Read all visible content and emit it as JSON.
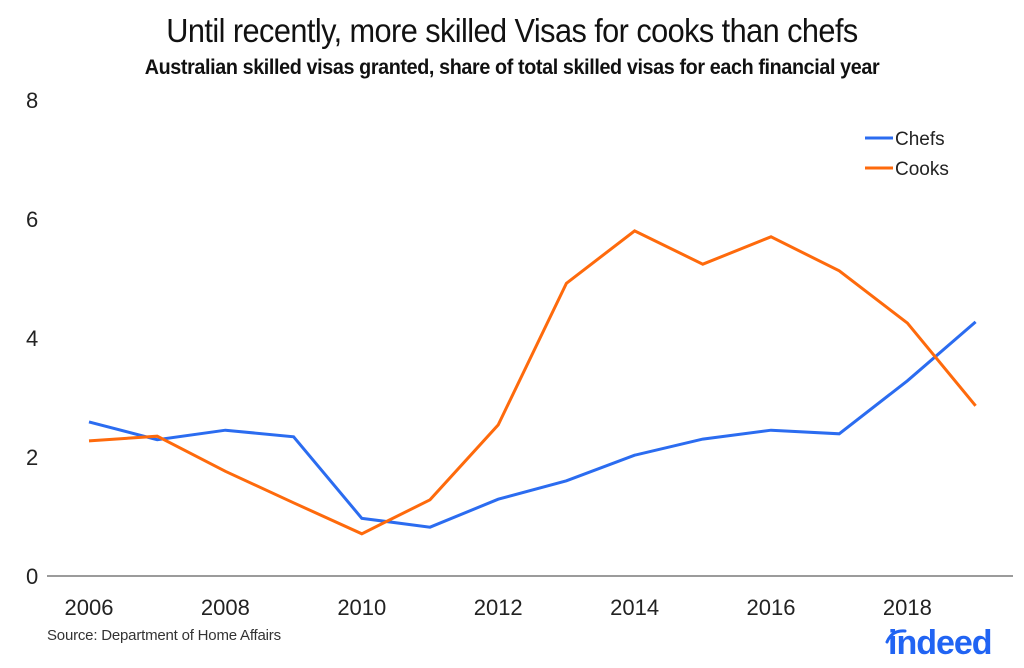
{
  "title": "Until recently, more skilled Visas for cooks than chefs",
  "subtitle": "Australian skilled visas granted, share of total skilled visas for each financial year",
  "source": "Source: Department of Home Affairs",
  "logo": "indeed",
  "colors": {
    "chefs": "#2b6cf0",
    "cooks": "#fe6a0c",
    "axis": "#7a7a7a",
    "logo": "#2164f3"
  },
  "legend": [
    {
      "label": "Chefs",
      "color": "#2b6cf0"
    },
    {
      "label": "Cooks",
      "color": "#fe6a0c"
    }
  ],
  "y_ticks": [
    "0",
    "2",
    "4",
    "6",
    "8"
  ],
  "x_ticks": [
    "2006",
    "2008",
    "2010",
    "2012",
    "2014",
    "2016",
    "2018"
  ],
  "chart_data": {
    "type": "line",
    "title": "Until recently, more skilled Visas for cooks than chefs",
    "subtitle": "Australian skilled visas granted, share of total skilled visas for each financial year",
    "xlabel": "",
    "ylabel": "",
    "x": [
      2006,
      2007,
      2008,
      2009,
      2010,
      2011,
      2012,
      2013,
      2014,
      2015,
      2016,
      2017,
      2018,
      2019
    ],
    "series": [
      {
        "name": "Chefs",
        "color": "#2b6cf0",
        "values": [
          2.59,
          2.29,
          2.45,
          2.34,
          0.97,
          0.82,
          1.29,
          1.6,
          2.03,
          2.3,
          2.45,
          2.39,
          3.28,
          4.27
        ]
      },
      {
        "name": "Cooks",
        "color": "#fe6a0c",
        "values": [
          2.27,
          2.35,
          1.76,
          1.23,
          0.71,
          1.28,
          2.54,
          4.92,
          5.8,
          5.24,
          5.7,
          5.13,
          4.25,
          2.86
        ]
      }
    ],
    "ylim": [
      0,
      8
    ],
    "y_ticks": [
      0,
      2,
      4,
      6,
      8
    ],
    "x_ticks": [
      2006,
      2008,
      2010,
      2012,
      2014,
      2016,
      2018
    ],
    "grid": false,
    "legend_position": "top-right",
    "source": "Source: Department of Home Affairs"
  }
}
